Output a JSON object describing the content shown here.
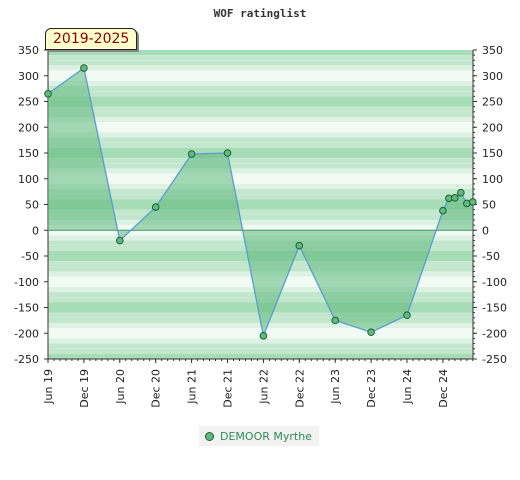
{
  "badge": "2019-2025",
  "legend_label": "DEMOOR Myrthe",
  "colors": {
    "series_line": "#5b9bd5",
    "series_fill": "#5fba7d",
    "marker_fill": "#5fba7d",
    "marker_stroke": "#1f5f35",
    "band_colors": [
      "#a6dcb6",
      "#c3e7cd",
      "#def2e3",
      "#f2faf4"
    ]
  },
  "chart_data": {
    "type": "area",
    "title": "WOF ratinglist",
    "xlabel": "",
    "ylabel": "",
    "ylim": [
      -250,
      350
    ],
    "yticks": [
      350,
      300,
      250,
      200,
      150,
      100,
      50,
      0,
      -50,
      -100,
      -150,
      -200,
      -250
    ],
    "right_axis": true,
    "xticks": [
      "Jun 19",
      "Dec 19",
      "Jun 20",
      "Dec 20",
      "Jun 21",
      "Dec 21",
      "Jun 22",
      "Dec 22",
      "Jun 23",
      "Dec 23",
      "Jun 24",
      "Dec 24"
    ],
    "legend_position": "bottom",
    "series": [
      {
        "name": "DEMOOR Myrthe",
        "points": [
          {
            "x": "Jun 19",
            "y": 265
          },
          {
            "x": "Dec 19",
            "y": 315
          },
          {
            "x": "Jun 20",
            "y": -20
          },
          {
            "x": "Dec 20",
            "y": 45
          },
          {
            "x": "Jun 21",
            "y": 148
          },
          {
            "x": "Dec 21",
            "y": 150
          },
          {
            "x": "Jun 22",
            "y": -205
          },
          {
            "x": "Dec 22",
            "y": -30
          },
          {
            "x": "Jun 23",
            "y": -175
          },
          {
            "x": "Dec 23",
            "y": -198
          },
          {
            "x": "Jun 24",
            "y": -165
          },
          {
            "x": "Dec 24",
            "y": 38
          },
          {
            "x": "Jan 25",
            "y": 62
          },
          {
            "x": "Feb 25",
            "y": 63
          },
          {
            "x": "Mar 25",
            "y": 73
          },
          {
            "x": "Apr 25",
            "y": 52
          },
          {
            "x": "May 25",
            "y": 55
          }
        ]
      }
    ]
  }
}
